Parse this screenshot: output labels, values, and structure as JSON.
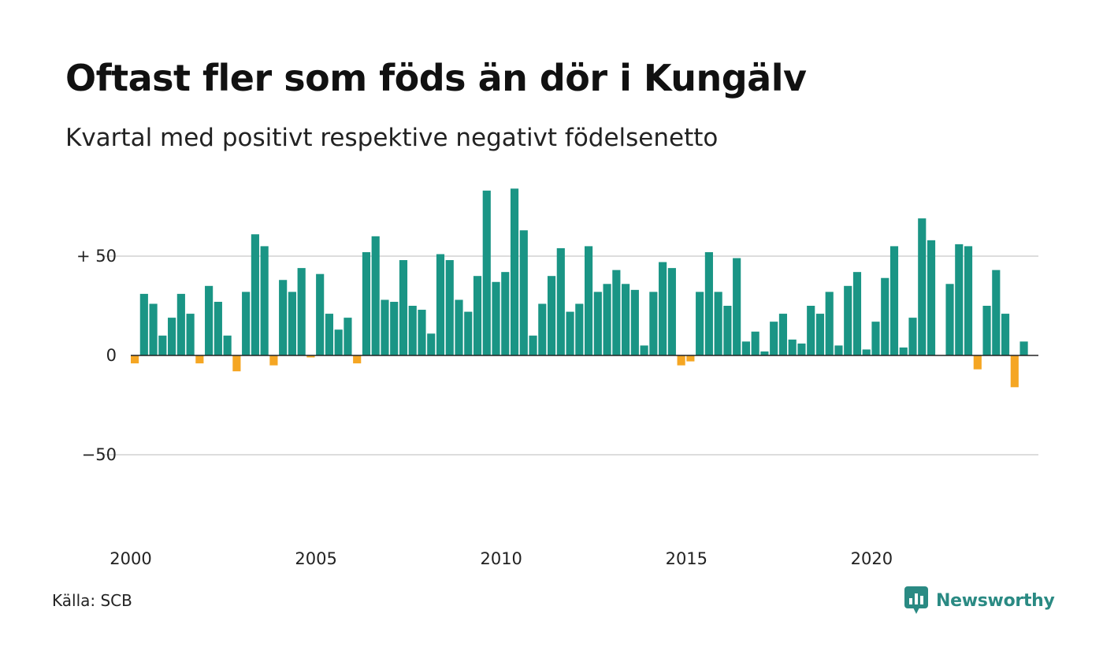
{
  "header": {
    "title": "Oftast fler som föds än dör i Kungälv",
    "subtitle": "Kvartal med positivt respektive negativt födelsenetto"
  },
  "footer": {
    "source": "Källa: SCB",
    "brand": "Newsworthy"
  },
  "colors": {
    "positive": "#1a9585",
    "negative": "#f5a623",
    "gridline": "#dddddd",
    "zero_line": "#222222",
    "brand": "#2a8a83"
  },
  "chart_data": {
    "type": "bar",
    "title": "Oftast fler som föds än dör i Kungälv",
    "subtitle": "Kvartal med positivt respektive negativt födelsenetto",
    "xlabel": "",
    "ylabel": "",
    "x_ticks": [
      {
        "year": 2000,
        "label": "2000"
      },
      {
        "year": 2005,
        "label": "2005"
      },
      {
        "year": 2010,
        "label": "2010"
      },
      {
        "year": 2015,
        "label": "2015"
      },
      {
        "year": 2020,
        "label": "2020"
      }
    ],
    "y_ticks": [
      {
        "value": 50,
        "label": "+ 50"
      },
      {
        "value": 0,
        "label": "0"
      },
      {
        "value": -50,
        "label": "−50"
      }
    ],
    "ylim": [
      -88,
      90
    ],
    "xlim": [
      2000,
      2024.5
    ],
    "grid": true,
    "series": [
      {
        "values": [
          -4,
          31,
          26,
          10,
          19,
          31,
          21,
          -4,
          35,
          27,
          10,
          -8,
          32,
          61,
          55,
          -5,
          38,
          32,
          44,
          -1,
          41,
          21,
          13,
          19,
          -4,
          52,
          60,
          28,
          27,
          48,
          25,
          23,
          11,
          51,
          48,
          28,
          22,
          40,
          83,
          37,
          42,
          84,
          63,
          10,
          26,
          40,
          54,
          22,
          26,
          55,
          32,
          36,
          43,
          36,
          33,
          5,
          32,
          47,
          44,
          -5,
          -3,
          32,
          52,
          32,
          25,
          49,
          7,
          12,
          2,
          17,
          21,
          8,
          6,
          25,
          21,
          32,
          5,
          35,
          42,
          3,
          17,
          39,
          55,
          4,
          19,
          69,
          58,
          0,
          36,
          56,
          55,
          -7,
          25,
          43,
          21,
          -16,
          7
        ]
      }
    ]
  }
}
